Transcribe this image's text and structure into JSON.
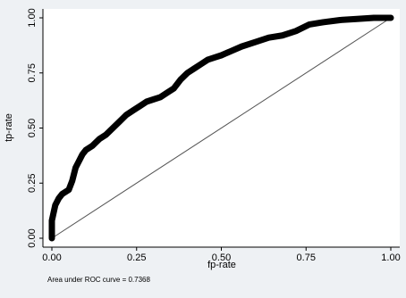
{
  "chart_data": {
    "type": "line",
    "title": "",
    "xlabel": "fp-rate",
    "ylabel": "tp-rate",
    "xlim": [
      0,
      1
    ],
    "ylim": [
      0,
      1
    ],
    "x_ticks": [
      "0.00",
      "0.25",
      "0.50",
      "0.75",
      "1.00"
    ],
    "y_ticks": [
      "0.00",
      "0.25",
      "0.50",
      "0.75",
      "1.00"
    ],
    "grid": false,
    "note": "Area under ROC curve = 0.7368",
    "colors": {
      "background": "#eef1f4",
      "plot_area": "#ffffff",
      "curve": "#000000",
      "reference_line": "#555555"
    },
    "series": [
      {
        "role": "roc-curve",
        "x": [
          0.0,
          0.0,
          0.01,
          0.02,
          0.03,
          0.05,
          0.06,
          0.07,
          0.08,
          0.09,
          0.1,
          0.12,
          0.14,
          0.16,
          0.18,
          0.2,
          0.22,
          0.24,
          0.26,
          0.28,
          0.3,
          0.32,
          0.34,
          0.36,
          0.38,
          0.4,
          0.42,
          0.44,
          0.46,
          0.48,
          0.5,
          0.53,
          0.56,
          0.6,
          0.64,
          0.68,
          0.72,
          0.76,
          0.8,
          0.85,
          0.9,
          0.95,
          1.0
        ],
        "y": [
          0.0,
          0.08,
          0.15,
          0.18,
          0.2,
          0.22,
          0.26,
          0.32,
          0.35,
          0.38,
          0.4,
          0.42,
          0.45,
          0.47,
          0.5,
          0.53,
          0.56,
          0.58,
          0.6,
          0.62,
          0.63,
          0.64,
          0.66,
          0.68,
          0.72,
          0.75,
          0.77,
          0.79,
          0.81,
          0.82,
          0.83,
          0.85,
          0.87,
          0.89,
          0.91,
          0.92,
          0.94,
          0.97,
          0.98,
          0.99,
          0.995,
          1.0,
          1.0
        ]
      },
      {
        "role": "reference-diagonal",
        "x": [
          0,
          1
        ],
        "y": [
          0,
          1
        ]
      }
    ]
  }
}
